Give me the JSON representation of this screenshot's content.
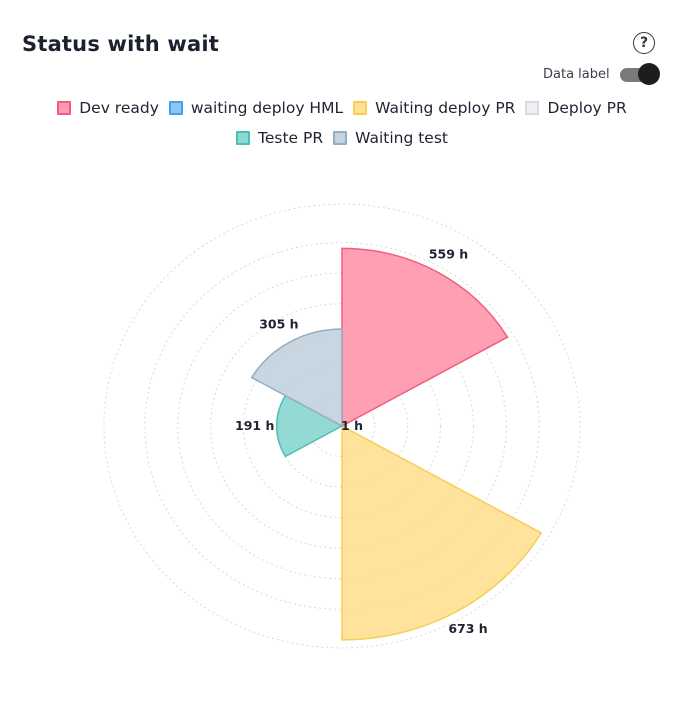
{
  "card": {
    "title": "Status with wait",
    "help_icon": "?",
    "data_label_toggle": {
      "label": "Data label",
      "on": true
    }
  },
  "chart_data": {
    "type": "polar-area",
    "title": "Status with wait",
    "legend_position": "top-center",
    "series": [
      {
        "name": "Dev ready",
        "value": 559,
        "label": "559 h",
        "fill": "#ff9ab0",
        "stroke": "#f45b7c"
      },
      {
        "name": "waiting deploy HML",
        "value": 1,
        "label": "1 h",
        "fill": "#8cc6f2",
        "stroke": "#4aa0e6"
      },
      {
        "name": "Waiting deploy PR",
        "value": 673,
        "label": "673 h",
        "fill": "#ffe096",
        "stroke": "#f7cd52"
      },
      {
        "name": "Deploy PR",
        "value": 0,
        "label": "",
        "fill": "#edeff3",
        "stroke": "#d8dbe2"
      },
      {
        "name": "Teste PR",
        "value": 191,
        "label": "191 h",
        "fill": "#8ed8d2",
        "stroke": "#4bbfb5"
      },
      {
        "name": "Waiting test",
        "value": 305,
        "label": "305 h",
        "fill": "#c5d4e0",
        "stroke": "#96adc0"
      }
    ],
    "r_max": 673,
    "grid": true,
    "grid_rings": 7
  }
}
